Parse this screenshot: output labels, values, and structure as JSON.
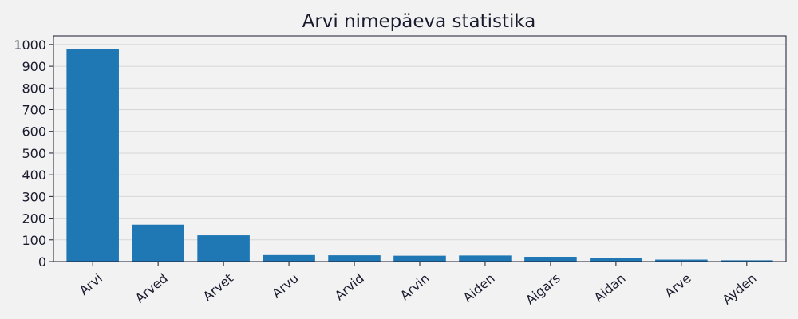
{
  "chart_data": {
    "type": "bar",
    "title": "Arvi nimepäeva statistika",
    "xlabel": "",
    "ylabel": "",
    "categories": [
      "Arvi",
      "Arved",
      "Arvet",
      "Arvu",
      "Arvid",
      "Arvin",
      "Aiden",
      "Aigars",
      "Aidan",
      "Arve",
      "Ayden"
    ],
    "values": [
      978,
      170,
      121,
      30,
      29,
      27,
      28,
      22,
      15,
      9,
      6
    ],
    "ylim": [
      0,
      1040
    ],
    "yticks": [
      0,
      100,
      200,
      300,
      400,
      500,
      600,
      700,
      800,
      900,
      1000
    ],
    "grid": true,
    "colors": {
      "bar": "#1f77b4",
      "grid": "#d6d6d6",
      "axis": "#1a1a2e",
      "background": "#f2f2f2"
    }
  }
}
